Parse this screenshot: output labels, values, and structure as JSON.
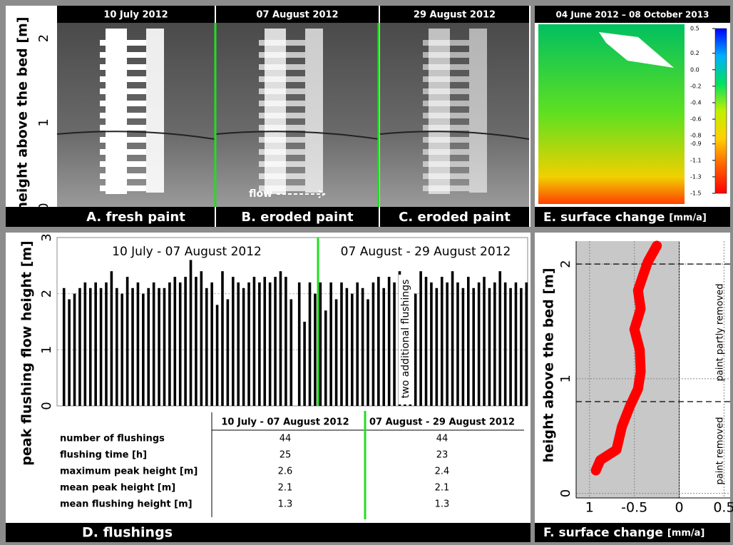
{
  "photos": {
    "y_label": "height above the bed [m]",
    "ylim": [
      -0.05,
      2.2
    ],
    "yticks": [
      0,
      1,
      2
    ],
    "dates": [
      "10 July 2012",
      "07 August 2012",
      "29 August 2012"
    ],
    "labels": [
      "A. fresh paint",
      "B. eroded paint",
      "C. eroded paint"
    ],
    "flow": "flow"
  },
  "chart_data": [
    {
      "type": "bar",
      "y_label": "peak flushing flow height [m]",
      "annotations": [
        "10 July - 07 August 2012",
        "07 August - 29 August 2012",
        "two additional flushings"
      ],
      "ylim": [
        0,
        3
      ],
      "yticks": [
        0,
        1,
        2,
        3
      ],
      "grid": true,
      "color": "#000000",
      "values": [
        2.1,
        1.9,
        2.0,
        2.1,
        2.2,
        2.1,
        2.2,
        2.1,
        2.2,
        2.4,
        2.1,
        2.0,
        2.3,
        2.1,
        2.2,
        2.0,
        2.1,
        2.2,
        2.1,
        2.1,
        2.2,
        2.3,
        2.2,
        2.3,
        2.6,
        2.3,
        2.4,
        2.1,
        2.2,
        1.8,
        2.4,
        1.9,
        2.3,
        2.2,
        2.1,
        2.2,
        2.3,
        2.2,
        2.3,
        2.2,
        2.3,
        2.4,
        2.3,
        1.9,
        2.2,
        1.5,
        2.2,
        2.0,
        2.2,
        1.7,
        2.2,
        1.9,
        2.2,
        2.1,
        2.0,
        2.2,
        2.1,
        1.9,
        2.2,
        2.3,
        2.1,
        2.3,
        2.2,
        2.4,
        2.1,
        2.3,
        2.0,
        2.4,
        2.3,
        2.2,
        2.1,
        2.3,
        2.2,
        2.4,
        2.2,
        2.1,
        2.3,
        2.1,
        2.2,
        2.3,
        2.1,
        2.2,
        2.4,
        2.2,
        2.1,
        2.2,
        2.1,
        2.2
      ],
      "label": "D. flushings"
    },
    {
      "type": "colormap",
      "title": "04 June 2012 – 08 October 2013",
      "ylim": [
        -1.5,
        0.5
      ],
      "yticks": [
        0.5,
        0.2,
        {
          "value": 0,
          "label": "0.0"
        },
        -0.2,
        -0.4,
        -0.6,
        -0.8,
        -0.9,
        -1.1,
        -1.3,
        -1.5
      ],
      "colors": [
        "#0000ff",
        "#00b0ff",
        "#00e060",
        "#c0f000",
        "#ffd000",
        "#ff6000",
        "#ff0000"
      ],
      "label": "E. surface change",
      "unit": "[mm/a]"
    },
    {
      "type": "line",
      "y_label": "height above the bed [m]",
      "xlim": [
        -1.15,
        0.6
      ],
      "ylim": [
        -0.04,
        2.2
      ],
      "xticks": [
        {
          "value": -1,
          "label": "1"
        },
        -0.5,
        0,
        0.5
      ],
      "yticks": [
        0,
        1,
        2
      ],
      "thresholds": [
        0.8,
        2.0
      ],
      "annotations": [
        "paint partly removed",
        "paint removed"
      ],
      "color": "#ff0000",
      "x": [
        -0.93,
        -0.88,
        -0.7,
        -0.64,
        -0.55,
        -0.46,
        -0.43,
        -0.44,
        -0.5,
        -0.43,
        -0.46,
        -0.39,
        -0.35,
        -0.25
      ],
      "values": [
        0.2,
        0.29,
        0.38,
        0.58,
        0.76,
        0.91,
        1.06,
        1.25,
        1.43,
        1.61,
        1.77,
        1.93,
        2.02,
        2.16
      ],
      "label": "F. surface change",
      "unit": "[mm/a]"
    }
  ],
  "table": {
    "columns": [
      "10 July - 07 August 2012",
      "07 August - 29 August 2012"
    ],
    "rows": [
      {
        "label": "number of flushings",
        "values": [
          44,
          44
        ]
      },
      {
        "label": "flushing time [h]",
        "values": [
          25,
          23
        ]
      },
      {
        "label": "maximum peak height [m]",
        "values": [
          2.6,
          2.4
        ]
      },
      {
        "label": "mean peak height [m]",
        "values": [
          2.1,
          2.1
        ]
      },
      {
        "label": "mean flushing height [m]",
        "values": [
          1.3,
          1.3
        ]
      }
    ]
  }
}
